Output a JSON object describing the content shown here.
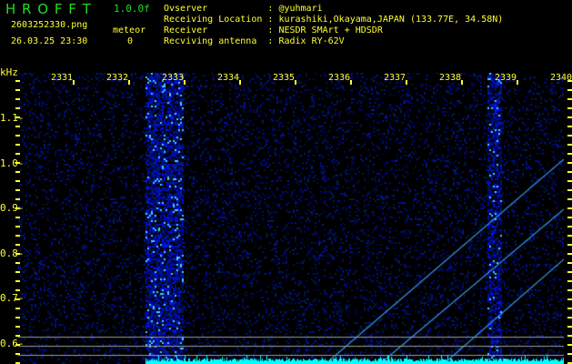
{
  "header": {
    "app_title": "H R O F F T",
    "version": "1.0.0f",
    "filename": "2603252330.png",
    "datetime": "26.03.25 23:30",
    "meteor_label": "meteor",
    "meteor_count": "0",
    "info": [
      {
        "label": "Ovserver          ",
        "value": ": @yuhmari"
      },
      {
        "label": "Receiving Location",
        "value": ": kurashiki,Okayama,JAPAN (133.77E, 34.58N)"
      },
      {
        "label": "Receiver          ",
        "value": ": NESDR SMArt + HDSDR"
      },
      {
        "label": "Recviving antenna ",
        "value": ": Radix RY-62V"
      }
    ]
  },
  "spectrogram": {
    "y_unit": "kHz",
    "y_ticks": [
      "1.1",
      "1.0",
      "0.9",
      "0.8",
      "0.7",
      "0.6"
    ],
    "x_ticks": [
      "2331",
      "2332",
      "2333",
      "2334",
      "2335",
      "2336",
      "2337",
      "2338",
      "2339",
      "2340"
    ],
    "colors": {
      "background": "#000000",
      "noise": "#1010c0",
      "signal": "#40d0ff",
      "baseline": "#00ffff",
      "ref_line": "#9a9a9a",
      "label": "#ffff33"
    }
  }
}
